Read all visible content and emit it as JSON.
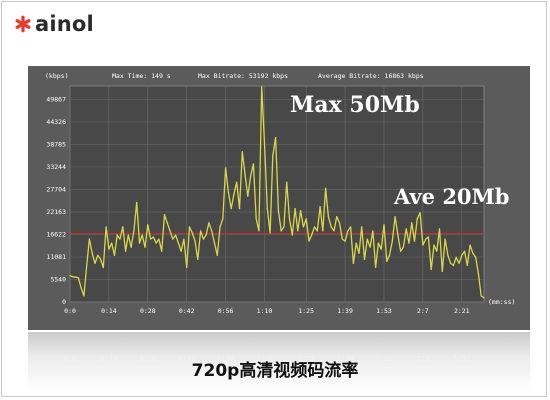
{
  "logo": {
    "text": "ainol",
    "mark_color": "#e83a2a"
  },
  "caption": "720p高清视频码流率",
  "chart_data": {
    "type": "line",
    "ylabel": "(kbps)",
    "xlabel": "(mm:ss)",
    "header": {
      "max_time": "Max Time: 149 s",
      "max_bitrate": "Max Bitrate: 53192 kbps",
      "average_bitrate": "Average Bitrate: 16863 kbps"
    },
    "annotations": {
      "max": "Max 50Mb",
      "ave": "Ave 20Mb"
    },
    "y_ticks": [
      0,
      5540,
      11081,
      16622,
      22163,
      27704,
      33244,
      38785,
      44326,
      49867
    ],
    "x_ticks": [
      {
        "label": "0:0",
        "t": 0
      },
      {
        "label": "0:14",
        "t": 14
      },
      {
        "label": "0:28",
        "t": 28
      },
      {
        "label": "0:42",
        "t": 42
      },
      {
        "label": "0:56",
        "t": 56
      },
      {
        "label": "1:10",
        "t": 70
      },
      {
        "label": "1:25",
        "t": 85
      },
      {
        "label": "1:39",
        "t": 99
      },
      {
        "label": "1:53",
        "t": 113
      },
      {
        "label": "2:7",
        "t": 127
      },
      {
        "label": "2:21",
        "t": 141
      }
    ],
    "ylim": [
      0,
      53192
    ],
    "xlim": [
      0,
      149
    ],
    "average": 16863,
    "series": [
      {
        "color": "#d8d84a",
        "x": [
          0,
          1,
          2,
          3,
          4,
          5,
          6,
          7,
          8,
          9,
          10,
          11,
          12,
          13,
          14,
          15,
          16,
          17,
          18,
          19,
          20,
          21,
          22,
          23,
          24,
          25,
          26,
          27,
          28,
          29,
          30,
          31,
          32,
          33,
          34,
          35,
          36,
          37,
          38,
          39,
          40,
          41,
          42,
          43,
          44,
          45,
          46,
          47,
          48,
          49,
          50,
          51,
          52,
          53,
          54,
          55,
          56,
          57,
          58,
          59,
          60,
          61,
          62,
          63,
          64,
          65,
          66,
          67,
          68,
          69,
          70,
          71,
          72,
          73,
          74,
          75,
          76,
          77,
          78,
          79,
          80,
          81,
          82,
          83,
          84,
          85,
          86,
          87,
          88,
          89,
          90,
          91,
          92,
          93,
          94,
          95,
          96,
          97,
          98,
          99,
          100,
          101,
          102,
          103,
          104,
          105,
          106,
          107,
          108,
          109,
          110,
          111,
          112,
          113,
          114,
          115,
          116,
          117,
          118,
          119,
          120,
          121,
          122,
          123,
          124,
          125,
          126,
          127,
          128,
          129,
          130,
          131,
          132,
          133,
          134,
          135,
          136,
          137,
          138,
          139,
          140,
          141,
          142,
          143,
          144,
          145,
          146,
          147,
          148,
          149
        ],
        "y": [
          6500,
          6200,
          6100,
          6000,
          3500,
          1500,
          9000,
          15500,
          12000,
          9500,
          11500,
          10500,
          8500,
          18500,
          13000,
          14500,
          11500,
          16500,
          15500,
          18500,
          12500,
          16500,
          13500,
          17500,
          24500,
          14500,
          16500,
          13500,
          19000,
          15500,
          16000,
          14500,
          15500,
          12500,
          21500,
          19500,
          17500,
          15500,
          16500,
          14500,
          12500,
          15500,
          8500,
          18500,
          17000,
          15000,
          10500,
          17500,
          15500,
          16500,
          19500,
          17500,
          14500,
          11500,
          18500,
          20500,
          33000,
          27000,
          23000,
          26500,
          29500,
          23000,
          37000,
          31500,
          26000,
          31000,
          34000,
          20500,
          17500,
          53000,
          39000,
          23000,
          17000,
          36000,
          40500,
          22500,
          17500,
          18500,
          29500,
          20500,
          16500,
          23000,
          17500,
          22500,
          18500,
          20500,
          15000,
          16500,
          18500,
          17500,
          23500,
          17500,
          28000,
          21000,
          18500,
          17500,
          21000,
          19500,
          15500,
          15000,
          17500,
          18500,
          9500,
          14500,
          12000,
          18500,
          10500,
          15500,
          13500,
          17500,
          8500,
          14500,
          13000,
          19000,
          10000,
          11500,
          15000,
          21000,
          16500,
          12500,
          13500,
          18000,
          14500,
          19500,
          15000,
          20500,
          22000,
          14000,
          15500,
          16000,
          8000,
          14000,
          12500,
          18000,
          7500,
          15500,
          11500,
          9500,
          9000,
          11000,
          9500,
          11500,
          12500,
          9000,
          14000,
          12000,
          11000,
          7000,
          1500,
          1000
        ]
      }
    ],
    "grid": true
  }
}
